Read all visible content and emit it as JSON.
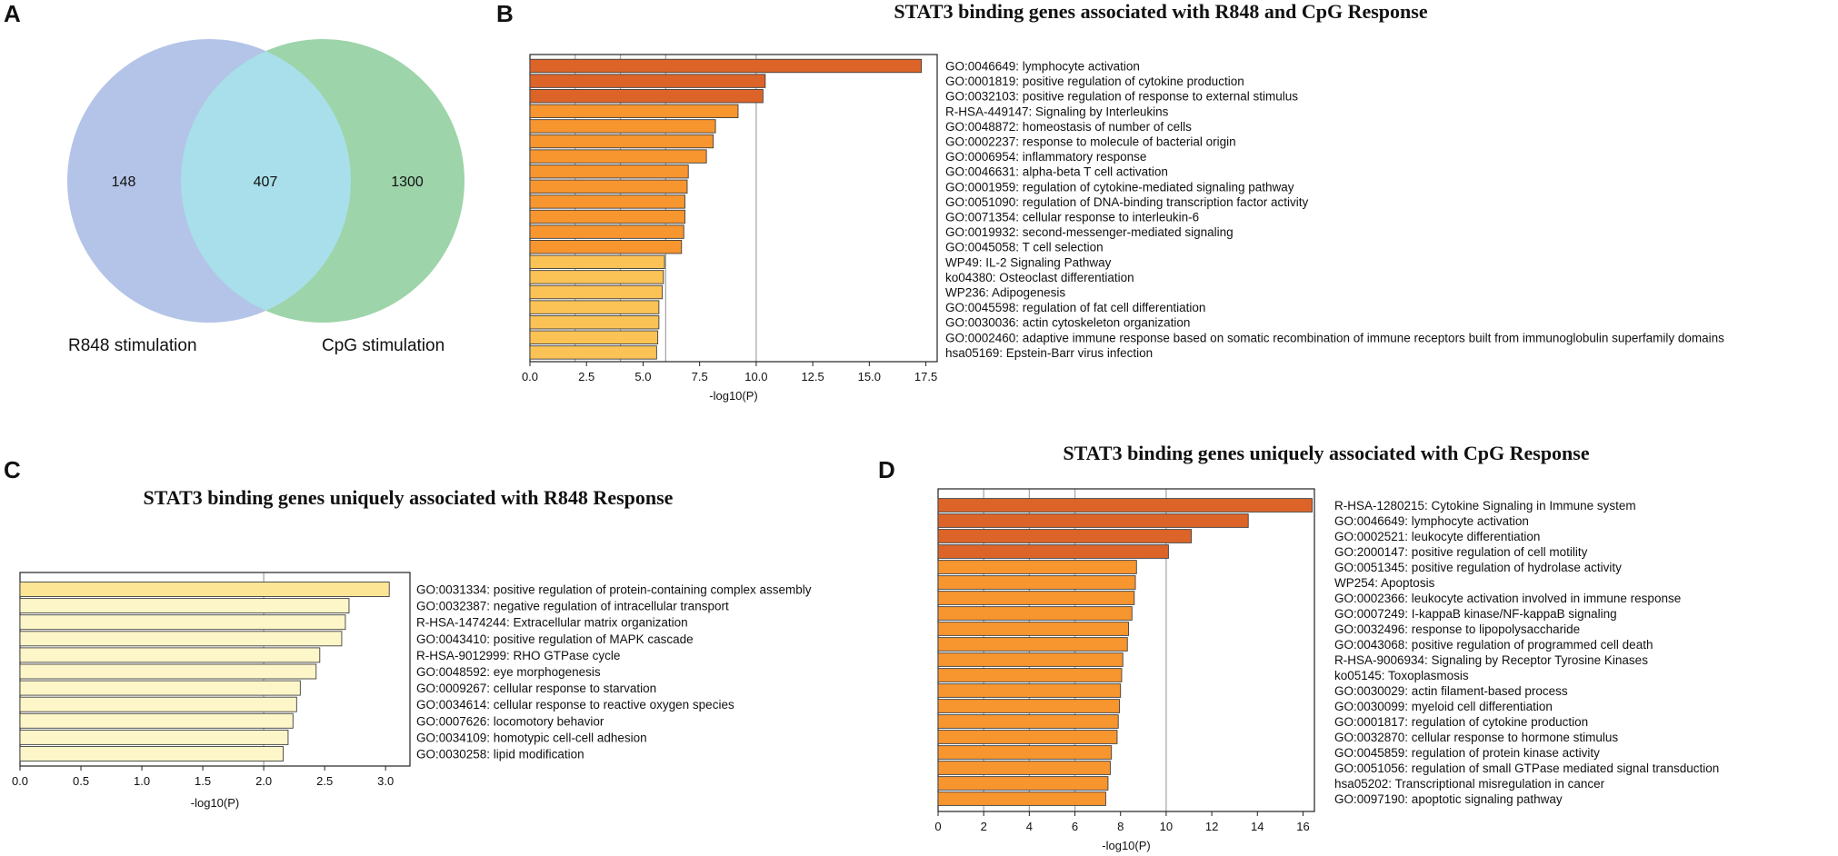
{
  "figure": {
    "panels": {
      "A": "A",
      "B": "B",
      "C": "C",
      "D": "D"
    }
  },
  "colors": {
    "dark_orange": "#dd6428",
    "orange": "#f7952f",
    "light_orange": "#fbc256",
    "pale_yellow": "#fde596",
    "cream": "#fdf6c8",
    "venn_left": "#b4c4e8",
    "venn_right": "#9dd4a9",
    "venn_overlap": "#a8dfea",
    "gridline": "#a9a9a9",
    "bar_edge": "#404040"
  },
  "chart_data": [
    {
      "id": "A",
      "type": "venn",
      "sets": [
        {
          "name": "R848 stimulation",
          "only": 148
        },
        {
          "name": "CpG stimulation",
          "only": 1300
        }
      ],
      "overlap": 407
    },
    {
      "id": "B",
      "type": "bar",
      "orientation": "horizontal",
      "title": "STAT3 binding genes associated with R848 and CpG Response",
      "xlabel": "-log10(P)",
      "xlim": [
        0,
        18
      ],
      "xticks": [
        "0.0",
        "2.5",
        "5.0",
        "7.5",
        "10.0",
        "12.5",
        "15.0",
        "17.5"
      ],
      "gridlines": [
        2,
        4,
        6,
        10
      ],
      "categories": [
        "GO:0046649: lymphocyte activation",
        "GO:0001819: positive regulation of cytokine production",
        "GO:0032103: positive regulation of response to external stimulus",
        "R-HSA-449147: Signaling by Interleukins",
        "GO:0048872: homeostasis of number of cells",
        "GO:0002237: response to molecule of bacterial origin",
        "GO:0006954: inflammatory response",
        "GO:0046631: alpha-beta T cell activation",
        "GO:0001959: regulation of cytokine-mediated signaling pathway",
        "GO:0051090: regulation of DNA-binding transcription factor activity",
        "GO:0071354: cellular response to interleukin-6",
        "GO:0019932: second-messenger-mediated signaling",
        "GO:0045058: T cell selection",
        "WP49: IL-2 Signaling Pathway",
        "ko04380: Osteoclast differentiation",
        "WP236: Adipogenesis",
        "GO:0045598: regulation of fat cell differentiation",
        "GO:0030036: actin cytoskeleton organization",
        "GO:0002460: adaptive immune response based on somatic recombination of immune receptors built from immunoglobulin superfamily domains",
        "hsa05169: Epstein-Barr virus infection"
      ],
      "values": [
        17.3,
        10.4,
        10.3,
        9.2,
        8.2,
        8.1,
        7.8,
        7.0,
        6.95,
        6.85,
        6.85,
        6.8,
        6.7,
        5.95,
        5.9,
        5.85,
        5.7,
        5.7,
        5.65,
        5.6
      ],
      "colors": [
        "#dd6428",
        "#dd6428",
        "#dd6428",
        "#f7952f",
        "#f7952f",
        "#f7952f",
        "#f7952f",
        "#f7952f",
        "#f7952f",
        "#f7952f",
        "#f7952f",
        "#f7952f",
        "#f7952f",
        "#fbc256",
        "#fbc256",
        "#fbc256",
        "#fbc256",
        "#fbc256",
        "#fbc256",
        "#fbc256"
      ]
    },
    {
      "id": "C",
      "type": "bar",
      "orientation": "horizontal",
      "title": "STAT3 binding genes uniquely associated with R848 Response",
      "xlabel": "-log10(P)",
      "xlim": [
        0,
        3.2
      ],
      "xticks": [
        "0.0",
        "0.5",
        "1.0",
        "1.5",
        "2.0",
        "2.5",
        "3.0"
      ],
      "gridlines": [
        2
      ],
      "categories": [
        "GO:0031334: positive regulation of protein-containing complex assembly",
        "GO:0032387: negative regulation of intracellular transport",
        "R-HSA-1474244: Extracellular matrix organization",
        "GO:0043410: positive regulation of MAPK cascade",
        "R-HSA-9012999: RHO GTPase cycle",
        "GO:0048592: eye morphogenesis",
        "GO:0009267: cellular response to starvation",
        "GO:0034614: cellular response to reactive oxygen species",
        "GO:0007626: locomotory behavior",
        "GO:0034109: homotypic cell-cell adhesion",
        "GO:0030258: lipid modification"
      ],
      "values": [
        3.03,
        2.7,
        2.67,
        2.64,
        2.46,
        2.43,
        2.3,
        2.27,
        2.24,
        2.2,
        2.16
      ],
      "colors": [
        "#fde596",
        "#fdf6c8",
        "#fdf6c8",
        "#fdf6c8",
        "#fdf6c8",
        "#fdf6c8",
        "#fdf6c8",
        "#fdf6c8",
        "#fdf6c8",
        "#fdf6c8",
        "#fdf6c8"
      ]
    },
    {
      "id": "D",
      "type": "bar",
      "orientation": "horizontal",
      "title": "STAT3 binding genes uniquely associated with CpG Response",
      "xlabel": "-log10(P)",
      "xlim": [
        0,
        16.5
      ],
      "xticks": [
        "0",
        "2",
        "4",
        "6",
        "8",
        "10",
        "12",
        "14",
        "16"
      ],
      "gridlines": [
        2,
        4,
        6,
        10
      ],
      "categories": [
        "R-HSA-1280215: Cytokine Signaling in Immune system",
        "GO:0046649: lymphocyte activation",
        "GO:0002521: leukocyte differentiation",
        "GO:2000147: positive regulation of cell motility",
        "GO:0051345: positive regulation of hydrolase activity",
        "WP254: Apoptosis",
        "GO:0002366: leukocyte activation involved in immune response",
        "GO:0007249: I-kappaB kinase/NF-kappaB signaling",
        "GO:0032496: response to lipopolysaccharide",
        "GO:0043068: positive regulation of programmed cell death",
        "R-HSA-9006934: Signaling by Receptor Tyrosine Kinases",
        "ko05145: Toxoplasmosis",
        "GO:0030029: actin filament-based process",
        "GO:0030099: myeloid cell differentiation",
        "GO:0001817: regulation of cytokine production",
        "GO:0032870: cellular response to hormone stimulus",
        "GO:0045859: regulation of protein kinase activity",
        "GO:0051056: regulation of small GTPase mediated signal transduction",
        "hsa05202: Transcriptional misregulation in cancer",
        "GO:0097190: apoptotic signaling pathway"
      ],
      "values": [
        16.4,
        13.6,
        11.1,
        10.1,
        8.7,
        8.65,
        8.6,
        8.5,
        8.35,
        8.3,
        8.1,
        8.05,
        8.0,
        7.95,
        7.9,
        7.85,
        7.6,
        7.55,
        7.45,
        7.35
      ],
      "colors": [
        "#dd6428",
        "#dd6428",
        "#dd6428",
        "#dd6428",
        "#f7952f",
        "#f7952f",
        "#f7952f",
        "#f7952f",
        "#f7952f",
        "#f7952f",
        "#f7952f",
        "#f7952f",
        "#f7952f",
        "#f7952f",
        "#f7952f",
        "#f7952f",
        "#f7952f",
        "#f7952f",
        "#f7952f",
        "#f7952f"
      ]
    }
  ]
}
